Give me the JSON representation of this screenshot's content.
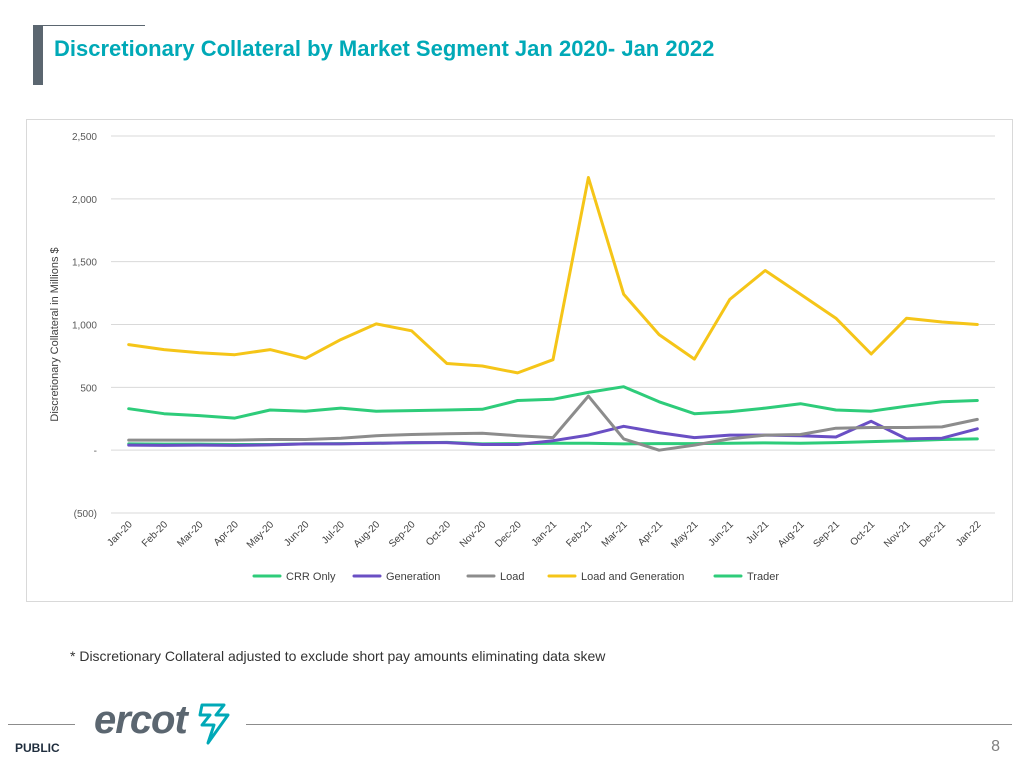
{
  "slide": {
    "title": "Discretionary Collateral by Market Segment Jan 2020- Jan 2022",
    "footnote": "* Discretionary Collateral adjusted to exclude short pay amounts eliminating data skew",
    "classification": "PUBLIC",
    "page_number": "8",
    "logo_text": "ercot"
  },
  "colors": {
    "title": "#00a9b7",
    "crr_only": "#2ecc7a",
    "generation": "#6a4fc4",
    "load": "#8c8c8c",
    "load_and_generation": "#f5c518",
    "trader": "#2ecc7a"
  },
  "chart_data": {
    "type": "line",
    "title": "",
    "xlabel": "",
    "ylabel": "Discretionary Collateral in Millions $",
    "ylim": [
      -500,
      2500
    ],
    "yticks": [
      -500,
      0,
      500,
      1000,
      1500,
      2000,
      2500
    ],
    "ytick_labels": [
      "(500)",
      "-",
      "500",
      "1,000",
      "1,500",
      "2,000",
      "2,500"
    ],
    "grid": true,
    "legend_position": "bottom",
    "categories": [
      "Jan-20",
      "Feb-20",
      "Mar-20",
      "Apr-20",
      "May-20",
      "Jun-20",
      "Jul-20",
      "Aug-20",
      "Sep-20",
      "Oct-20",
      "Nov-20",
      "Dec-20",
      "Jan-21",
      "Feb-21",
      "Mar-21",
      "Apr-21",
      "May-21",
      "Jun-21",
      "Jul-21",
      "Aug-21",
      "Sep-21",
      "Oct-21",
      "Nov-21",
      "Dec-21",
      "Jan-22"
    ],
    "series": [
      {
        "name": "CRR Only",
        "color": "#2ecc7a",
        "values": [
          50,
          48,
          48,
          45,
          45,
          50,
          52,
          55,
          58,
          62,
          50,
          52,
          55,
          55,
          50,
          52,
          52,
          55,
          58,
          55,
          60,
          68,
          75,
          85,
          90
        ]
      },
      {
        "name": "Generation",
        "color": "#6a4fc4",
        "values": [
          40,
          38,
          40,
          38,
          42,
          50,
          50,
          55,
          60,
          60,
          45,
          45,
          75,
          120,
          190,
          140,
          100,
          120,
          120,
          115,
          105,
          230,
          90,
          95,
          170
        ]
      },
      {
        "name": "Load",
        "color": "#8c8c8c",
        "values": [
          80,
          80,
          80,
          80,
          85,
          85,
          95,
          115,
          125,
          130,
          135,
          115,
          100,
          430,
          90,
          0,
          40,
          90,
          120,
          125,
          175,
          180,
          180,
          185,
          245
        ]
      },
      {
        "name": "Load and Generation",
        "color": "#f5c518",
        "values": [
          840,
          800,
          775,
          760,
          800,
          730,
          880,
          1005,
          950,
          690,
          670,
          615,
          720,
          2170,
          1240,
          920,
          725,
          1200,
          1430,
          1240,
          1050,
          765,
          1050,
          1020,
          1000
        ]
      },
      {
        "name": "Trader",
        "color": "#2ecc7a",
        "values": [
          330,
          290,
          275,
          255,
          320,
          310,
          335,
          310,
          315,
          320,
          325,
          395,
          405,
          460,
          505,
          385,
          290,
          305,
          335,
          370,
          320,
          310,
          350,
          385,
          395
        ]
      }
    ]
  }
}
